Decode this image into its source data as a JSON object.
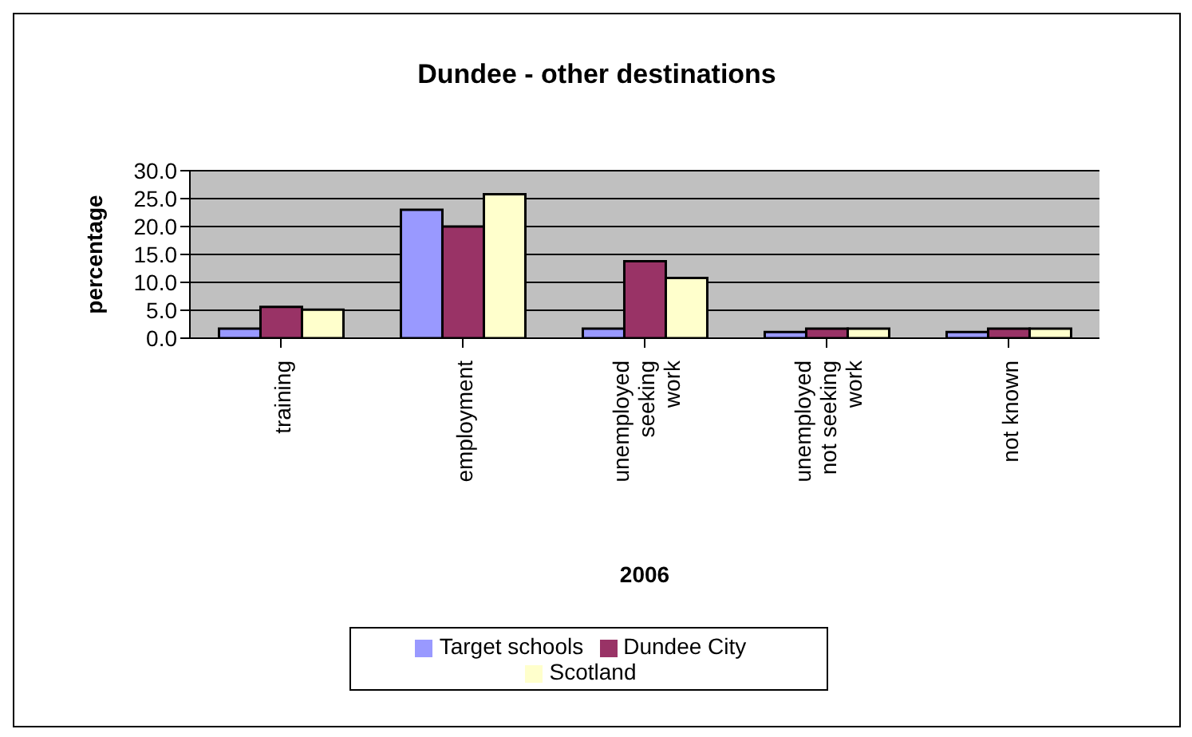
{
  "chart_data": {
    "type": "bar",
    "title": "Dundee - other destinations",
    "xlabel": "2006",
    "ylabel": "percentage",
    "categories": [
      "training",
      "employment",
      "unemployed seeking work",
      "unemployed not seeking work",
      "not known"
    ],
    "series": [
      {
        "name": "Target schools",
        "color": "#9999ff",
        "values": [
          1.7,
          23,
          1.7,
          1.1,
          1.1
        ]
      },
      {
        "name": "Dundee City",
        "color": "#993366",
        "values": [
          5.6,
          20,
          13.8,
          1.7,
          1.7
        ]
      },
      {
        "name": "Scotland",
        "color": "#ffffcc",
        "values": [
          5.1,
          25.8,
          10.8,
          1.7,
          1.7
        ]
      }
    ],
    "ylim": [
      0,
      30
    ],
    "yticks": [
      {
        "value": 0,
        "label": "0.0"
      },
      {
        "value": 5,
        "label": "5.0"
      },
      {
        "value": 10,
        "label": "10.0"
      },
      {
        "value": 15,
        "label": "15.0"
      },
      {
        "value": 20,
        "label": "20.0"
      },
      {
        "value": 25,
        "label": "25.0"
      },
      {
        "value": 30,
        "label": "30.0"
      }
    ],
    "grid": "y",
    "legend": "bottom"
  }
}
